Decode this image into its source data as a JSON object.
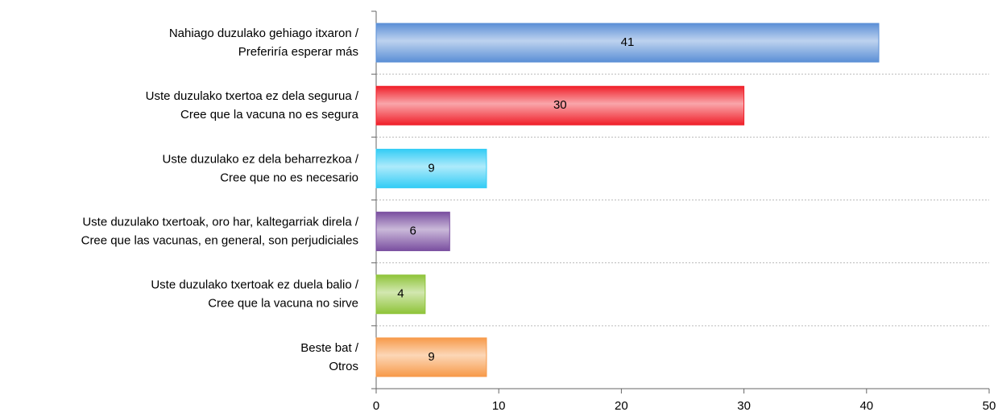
{
  "chart_data": {
    "type": "bar",
    "orientation": "horizontal",
    "categories": [
      [
        "Nahiago duzulako gehiago itxaron /",
        "Preferiría esperar más"
      ],
      [
        "Uste duzulako txertoa ez dela segurua /",
        "Cree que la vacuna no es segura"
      ],
      [
        "Uste duzulako ez dela beharrezkoa /",
        "Cree que no es necesario"
      ],
      [
        "Uste duzulako txertoak, oro har, kaltegarriak direla /",
        "Cree que las vacunas, en general, son perjudiciales"
      ],
      [
        "Uste duzulako txertoak ez duela balio /",
        "Cree que la vacuna no sirve"
      ],
      [
        "Beste bat /",
        "Otros"
      ]
    ],
    "values": [
      41,
      30,
      9,
      6,
      4,
      9
    ],
    "colors": [
      "#5b8fd6",
      "#f0202a",
      "#33ccf5",
      "#7a4fa0",
      "#8fc43a",
      "#f79a4a"
    ],
    "xlim": [
      0,
      50
    ],
    "xticks": [
      0,
      10,
      20,
      30,
      40,
      50
    ]
  }
}
